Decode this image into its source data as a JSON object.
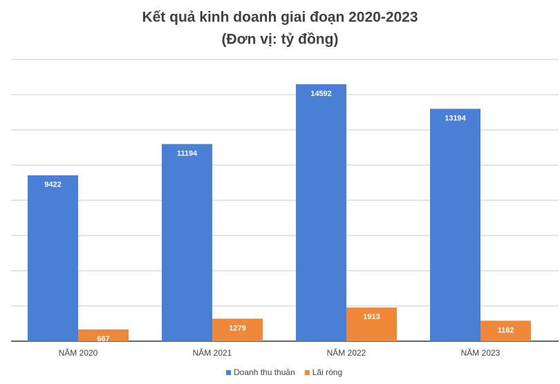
{
  "chart_data": {
    "type": "bar",
    "title": "Kết quả kinh doanh giai đoạn 2020-2023",
    "subtitle": "(Đơn vị: tỷ đồng)",
    "categories": [
      "NĂM 2020",
      "NĂM 2021",
      "NĂM 2022",
      "NĂM 2023"
    ],
    "series": [
      {
        "name": "Doanh thu thuần",
        "color": "#4a7fd6",
        "values": [
          9422,
          11194,
          14592,
          13194
        ]
      },
      {
        "name": "Lãi ròng",
        "color": "#f0883a",
        "values": [
          667,
          1279,
          1913,
          1162
        ]
      }
    ],
    "ylim": [
      0,
      16000
    ],
    "yticks": [
      0,
      2000,
      4000,
      6000,
      8000,
      10000,
      12000,
      14000,
      16000
    ],
    "grid": true,
    "legend": "bottom"
  }
}
